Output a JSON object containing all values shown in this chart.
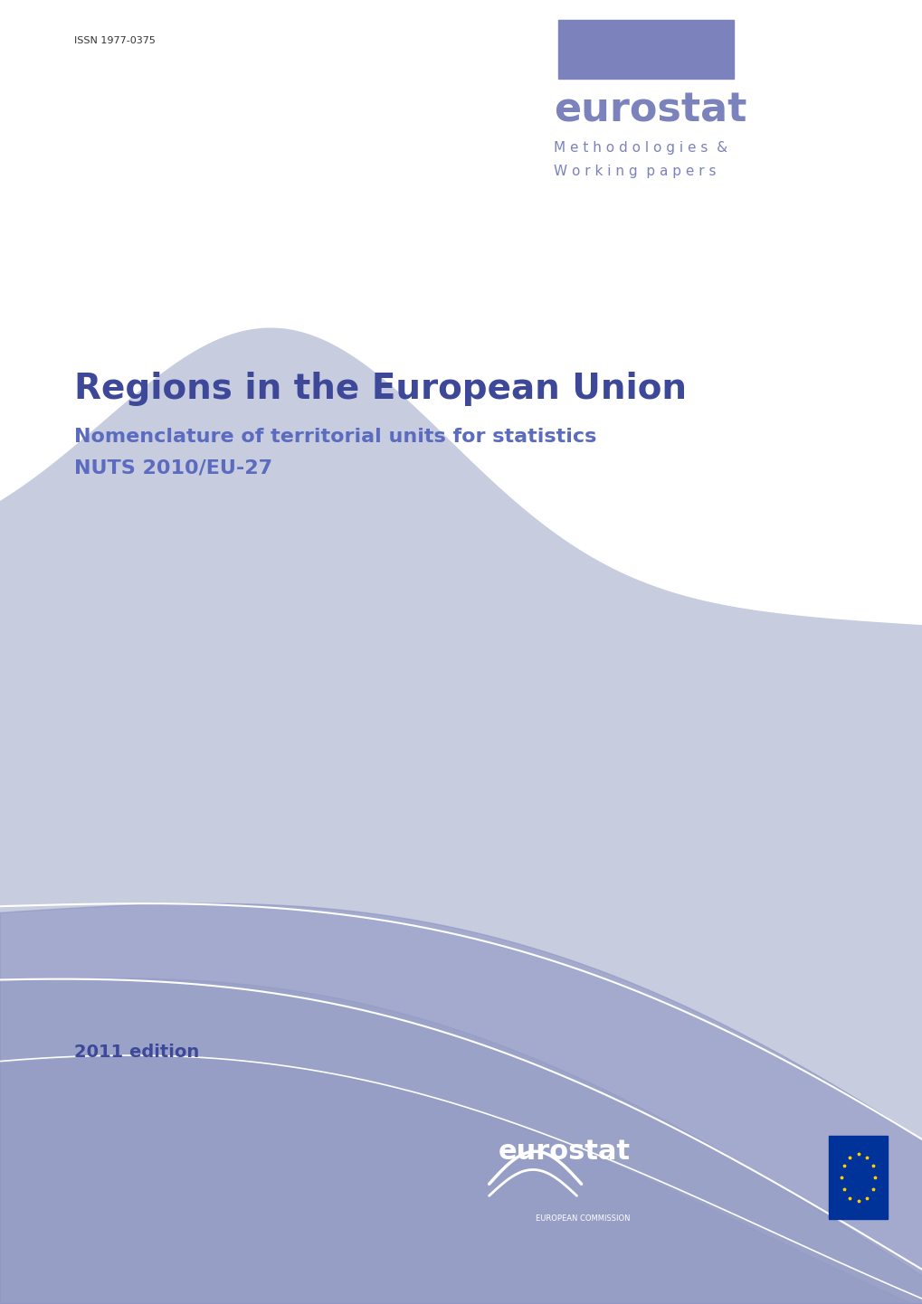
{
  "background_color": "#ffffff",
  "issn_text": "ISSN 1977-0375",
  "issn_color": "#333333",
  "issn_fontsize": 8,
  "header_rect_color": "#7b82bc",
  "eurostat_header_text": "eurostat",
  "eurostat_header_color": "#7b82bc",
  "eurostat_header_fontsize": 32,
  "methodologies_text": "M e t h o d o l o g i e s  &",
  "working_papers_text": "W o r k i n g  p a p e r s",
  "sub_header_color": "#7b82bc",
  "sub_header_fontsize": 11,
  "main_title": "Regions in the European Union",
  "main_title_color": "#3d4899",
  "main_title_fontsize": 28,
  "subtitle1": "Nomenclature of territorial units for statistics",
  "subtitle2": "NUTS 2010/EU-27",
  "subtitle_color": "#5b6bbf",
  "subtitle_fontsize": 16,
  "edition_text": "2011 edition",
  "edition_color": "#3d4899",
  "edition_fontsize": 14,
  "wave_bg_color": "#c8ccdf",
  "wave_mid_color": "#b0b6d4",
  "wave_dark_color": "#9099c4",
  "wave_white_line": "#ffffff",
  "logo_eurostat_text": "eurostat",
  "logo_eurostat_color": "#ffffff",
  "logo_sub_text": "EUROPEAN COMMISSION",
  "logo_sub_color": "#ffffff",
  "eu_flag_blue": "#003399",
  "eu_flag_yellow": "#ffcc00"
}
